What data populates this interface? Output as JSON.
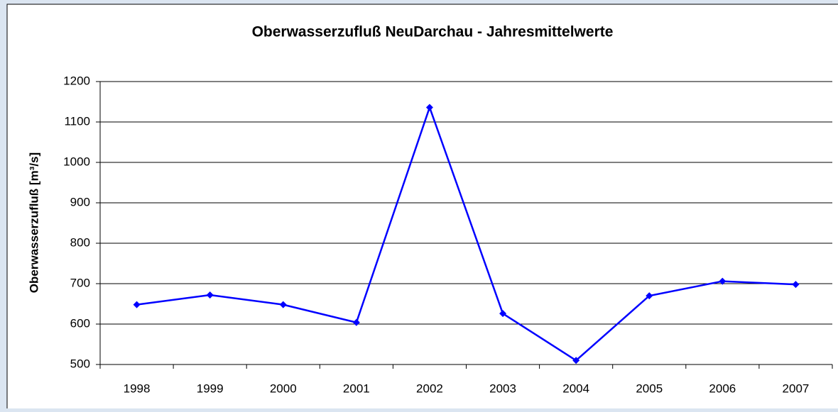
{
  "chart_data": {
    "type": "line",
    "title": "Oberwasserzufluß NeuDarchau - Jahresmittelwerte",
    "y_axis_label": "Oberwasserzufluß [m³/s]",
    "categories": [
      "1998",
      "1999",
      "2000",
      "2001",
      "2002",
      "2003",
      "2004",
      "2005",
      "2006",
      "2007"
    ],
    "series": [
      {
        "name": "Oberwasserzufluß",
        "color": "#0000ff",
        "values": [
          648,
          672,
          648,
          604,
          1136,
          626,
          510,
          670,
          706,
          698
        ]
      }
    ],
    "ylim": [
      500,
      1200
    ],
    "yticks": [
      500,
      600,
      700,
      800,
      900,
      1000,
      1100,
      1200
    ],
    "grid": true
  }
}
